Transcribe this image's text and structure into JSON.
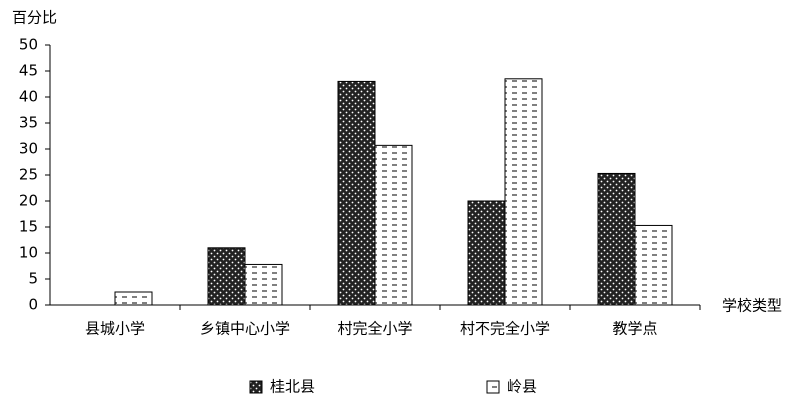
{
  "chart_data": {
    "type": "bar",
    "y_label": "百分比",
    "x_label": "学校类型",
    "categories": [
      "县城小学",
      "乡镇中心小学",
      "村完全小学",
      "村不完全小学",
      "教学点"
    ],
    "series": [
      {
        "name": "桂北县",
        "color": "#222222",
        "values": [
          0,
          11,
          43,
          20,
          25.3
        ]
      },
      {
        "name": "岭县",
        "color": "#ffffff",
        "values": [
          2.5,
          7.8,
          30.7,
          43.5,
          15.3
        ]
      }
    ],
    "ylim": [
      0,
      50
    ],
    "yticks": [
      0,
      5,
      10,
      15,
      20,
      25,
      30,
      35,
      40,
      45,
      50
    ],
    "grid": false
  }
}
